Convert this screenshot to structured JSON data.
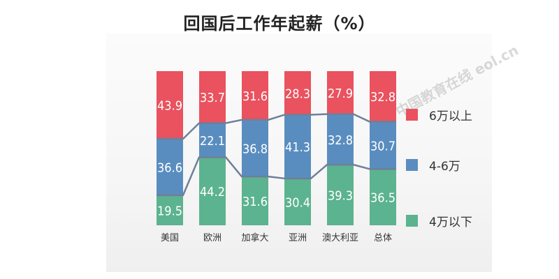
{
  "chart_data": {
    "type": "bar",
    "stacked": true,
    "title": "回国后工作年起薪（%）",
    "categories": [
      "美国",
      "欧洲",
      "加拿大",
      "亚洲",
      "澳大利亚",
      "总体"
    ],
    "series": [
      {
        "name": "4万以下",
        "color": "#5cb38f",
        "values": [
          19.5,
          44.2,
          31.6,
          30.4,
          39.3,
          36.5
        ]
      },
      {
        "name": "4-6万",
        "color": "#5a8dbf",
        "values": [
          36.6,
          22.1,
          36.8,
          41.3,
          32.8,
          30.7
        ]
      },
      {
        "name": "6万以上",
        "color": "#e9525e",
        "values": [
          43.9,
          33.7,
          31.6,
          28.3,
          27.9,
          32.8
        ]
      }
    ],
    "ylim": [
      0,
      100
    ],
    "legend_position": "right",
    "connector_lines": true,
    "watermark": "中国教育在线 eol.cn"
  }
}
